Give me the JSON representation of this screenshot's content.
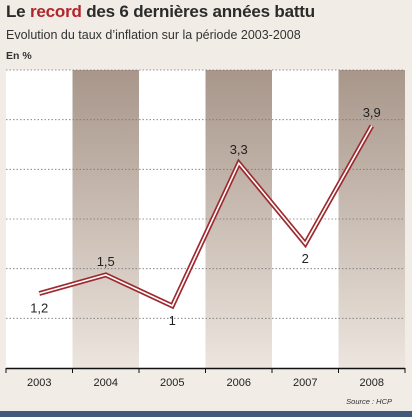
{
  "header": {
    "title_prefix": "Le ",
    "title_accent": "record",
    "title_suffix": " des 6 dernières années battu",
    "subtitle": "Evolution du taux d’inflation sur la période 2003-2008",
    "unit": "En %"
  },
  "footer": {
    "source": "Source : HCP"
  },
  "colors": {
    "line_outer": "#9e2a2f",
    "line_inner": "#ffffff",
    "band_light": "#ffffff",
    "band_dark": "#b09f93",
    "grid": "#777777",
    "accent": "#b0262d"
  },
  "chart_data": {
    "type": "line",
    "title": "",
    "xlabel": "",
    "ylabel": "",
    "categories": [
      "2003",
      "2004",
      "2005",
      "2006",
      "2007",
      "2008"
    ],
    "series": [
      {
        "values": [
          1.2,
          1.5,
          1.0,
          3.3,
          2.0,
          3.9
        ],
        "labels": [
          "1,2",
          "1,5",
          "1",
          "3,3",
          "2",
          "3,9"
        ]
      }
    ],
    "ylim": [
      0,
      4.8
    ],
    "grid": true,
    "legend": "none"
  }
}
